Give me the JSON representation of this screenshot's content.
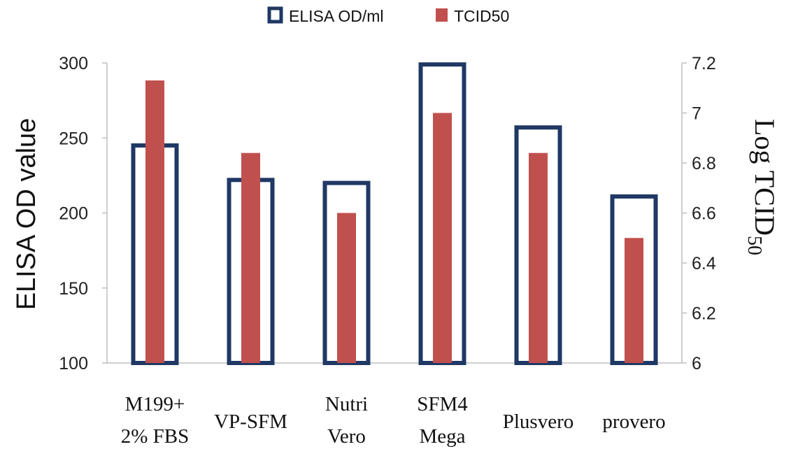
{
  "chart_data": {
    "type": "bar",
    "categories": [
      [
        "M199+",
        "2% FBS"
      ],
      [
        "VP-SFM"
      ],
      [
        "Nutri",
        "Vero"
      ],
      [
        "SFM4",
        "Mega"
      ],
      [
        "Plusvero"
      ],
      [
        "provero"
      ]
    ],
    "series": [
      {
        "name": "ELISA OD/ml",
        "axis": "left",
        "style": "outline",
        "values": [
          245,
          222,
          220,
          299,
          257,
          211
        ]
      },
      {
        "name": "TCID50",
        "axis": "right",
        "style": "filled",
        "values": [
          7.13,
          6.84,
          6.6,
          7.0,
          6.84,
          6.5
        ]
      }
    ],
    "ylabel": "ELISA OD value",
    "y2label": {
      "main": "Log TCID",
      "sub": "50"
    },
    "ylim": [
      100,
      300
    ],
    "y_ticks": [
      100,
      150,
      200,
      250,
      300
    ],
    "y2lim": [
      6,
      7.2
    ],
    "y2_ticks": [
      "6",
      "6.2",
      "6.4",
      "6.6",
      "6.8",
      "7",
      "7.2"
    ],
    "legend_position": "top",
    "grid": false,
    "colors": {
      "outline": "#1f3864",
      "filled": "#c0504d",
      "axis": "#bfbfbf"
    }
  }
}
